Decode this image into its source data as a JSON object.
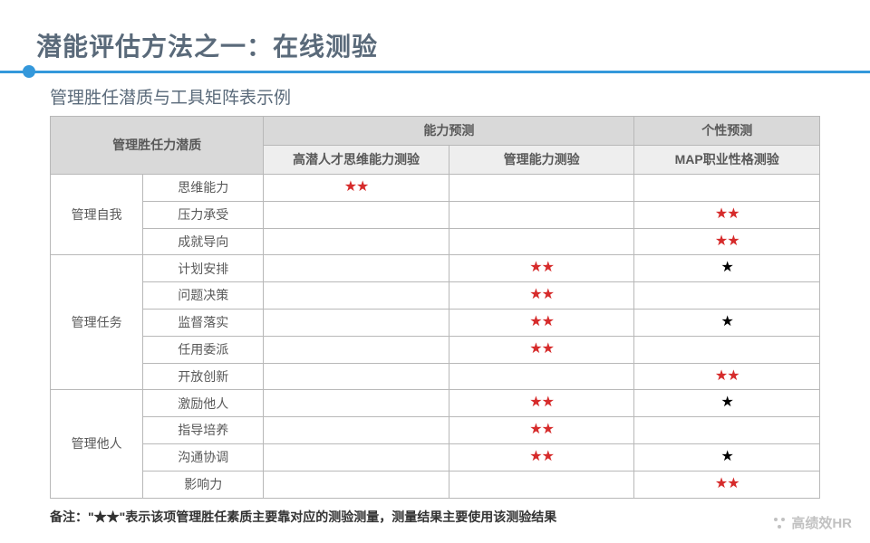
{
  "title": "潜能评估方法之一：在线测验",
  "subtitle": "管理胜任潜质与工具矩阵表示例",
  "header": {
    "corner": "管理胜任力潜质",
    "ability": "能力预测",
    "personality": "个性预测",
    "test1": "高潜人才思维能力测验",
    "test2": "管理能力测验",
    "test3": "MAP职业性格测验"
  },
  "groups": [
    {
      "name": "管理自我",
      "rows": [
        {
          "label": "思维能力",
          "c1": "red",
          "c2": "",
          "c3": ""
        },
        {
          "label": "压力承受",
          "c1": "",
          "c2": "",
          "c3": "red"
        },
        {
          "label": "成就导向",
          "c1": "",
          "c2": "",
          "c3": "red"
        }
      ]
    },
    {
      "name": "管理任务",
      "rows": [
        {
          "label": "计划安排",
          "c1": "",
          "c2": "red",
          "c3": "black"
        },
        {
          "label": "问题决策",
          "c1": "",
          "c2": "red",
          "c3": ""
        },
        {
          "label": "监督落实",
          "c1": "",
          "c2": "red",
          "c3": "black"
        },
        {
          "label": "任用委派",
          "c1": "",
          "c2": "red",
          "c3": ""
        },
        {
          "label": "开放创新",
          "c1": "",
          "c2": "",
          "c3": "red"
        }
      ]
    },
    {
      "name": "管理他人",
      "rows": [
        {
          "label": "激励他人",
          "c1": "",
          "c2": "red",
          "c3": "black"
        },
        {
          "label": "指导培养",
          "c1": "",
          "c2": "red",
          "c3": ""
        },
        {
          "label": "沟通协调",
          "c1": "",
          "c2": "red",
          "c3": "black"
        },
        {
          "label": "影响力",
          "c1": "",
          "c2": "",
          "c3": "red"
        }
      ]
    }
  ],
  "footnote": "备注：\"★★\"表示该项管理胜任素质主要靠对应的测验测量，测量结果主要使用该测验结果",
  "watermark": "高绩效HR",
  "styling": {
    "star_red_color": "#d62b2b",
    "star_black_color": "#000000",
    "header_bg": "#d9d9d9",
    "subheader_bg": "#eeeeee",
    "border_color": "#b8b8b8",
    "accent_color": "#3498db",
    "title_color": "#5a6a7a",
    "page_bg": "#ffffff"
  }
}
